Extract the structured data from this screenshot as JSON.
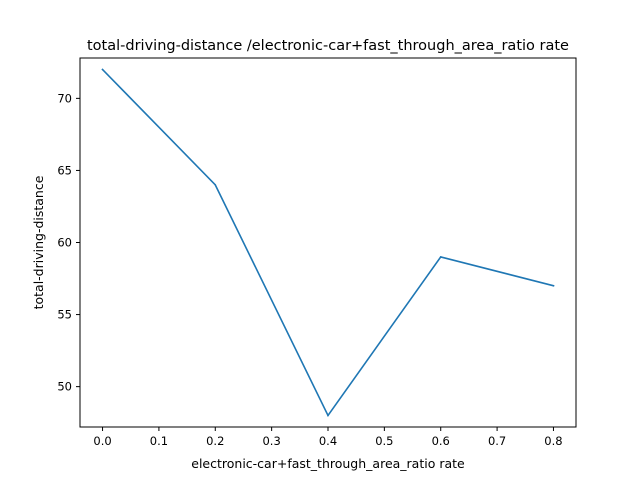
{
  "chart_data": {
    "type": "line",
    "title": "total-driving-distance /electronic-car+fast_through_area_ratio rate",
    "xlabel": "electronic-car+fast_through_area_ratio rate",
    "ylabel": "total-driving-distance",
    "x": [
      0.0,
      0.2,
      0.4,
      0.6,
      0.8
    ],
    "series": [
      {
        "values": [
          72,
          64,
          48,
          59,
          57
        ]
      }
    ],
    "xlim": [
      -0.04,
      0.84
    ],
    "ylim": [
      47.2,
      72.8
    ],
    "xticks": [
      0.0,
      0.1,
      0.2,
      0.3,
      0.4,
      0.5,
      0.6,
      0.7,
      0.8
    ],
    "xtick_labels": [
      "0.0",
      "0.1",
      "0.2",
      "0.3",
      "0.4",
      "0.5",
      "0.6",
      "0.7",
      "0.8"
    ],
    "yticks": [
      50,
      55,
      60,
      65,
      70
    ],
    "ytick_labels": [
      "50",
      "55",
      "60",
      "65",
      "70"
    ],
    "grid": false,
    "line_color": "#1f77b4"
  }
}
